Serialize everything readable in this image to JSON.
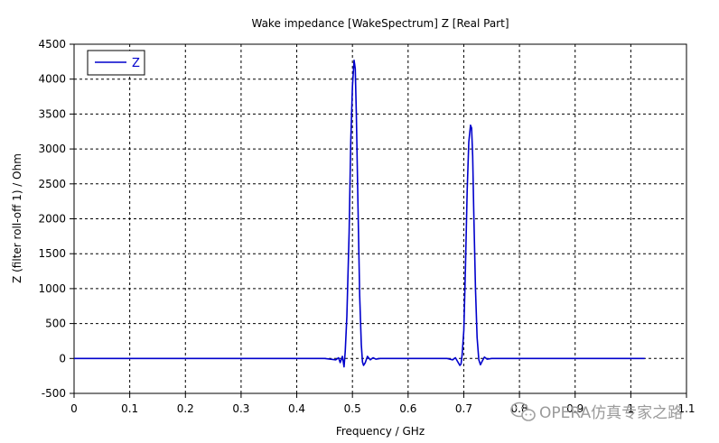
{
  "chart_data": {
    "type": "line",
    "title": "Wake impedance [WakeSpectrum] Z [Real Part]",
    "xlabel": "Frequency / GHz",
    "ylabel": "Z (filter roll-off 1) / Ohm",
    "xlim": [
      0,
      1.1
    ],
    "ylim": [
      -500,
      4500
    ],
    "xticks": [
      0,
      0.1,
      0.2,
      0.3,
      0.4,
      0.5,
      0.6,
      0.7,
      0.8,
      0.9,
      1.0,
      1.1
    ],
    "xtick_labels": [
      "0",
      "0.1",
      "0.2",
      "0.3",
      "0.4",
      "0.5",
      "0.6",
      "0.7",
      "0.8",
      "0.9",
      "1",
      "1.1"
    ],
    "yticks": [
      -500,
      0,
      500,
      1000,
      1500,
      2000,
      2500,
      3000,
      3500,
      4000,
      4500
    ],
    "ytick_labels": [
      "-500",
      "0",
      "500",
      "1000",
      "1500",
      "2000",
      "2500",
      "3000",
      "3500",
      "4000",
      "4500"
    ],
    "grid": true,
    "legend_position": "top-left",
    "series": [
      {
        "name": "Z",
        "color": "#0000cc",
        "x": [
          0,
          0.45,
          0.47,
          0.475,
          0.478,
          0.482,
          0.485,
          0.487,
          0.49,
          0.494,
          0.497,
          0.5,
          0.503,
          0.505,
          0.507,
          0.51,
          0.513,
          0.516,
          0.518,
          0.52,
          0.523,
          0.527,
          0.532,
          0.537,
          0.542,
          0.55,
          0.56,
          0.6,
          0.67,
          0.68,
          0.685,
          0.69,
          0.693,
          0.695,
          0.697,
          0.7,
          0.703,
          0.706,
          0.709,
          0.712,
          0.714,
          0.716,
          0.718,
          0.721,
          0.724,
          0.727,
          0.73,
          0.733,
          0.737,
          0.742,
          0.75,
          0.77,
          0.8,
          0.85,
          1.0,
          1.025
        ],
        "y": [
          0,
          0,
          -20,
          10,
          -60,
          30,
          -120,
          100,
          600,
          1800,
          3100,
          3900,
          4270,
          4150,
          3500,
          2200,
          900,
          200,
          -50,
          -100,
          -60,
          30,
          -20,
          10,
          -10,
          0,
          0,
          0,
          0,
          -20,
          10,
          -60,
          -100,
          -80,
          50,
          400,
          1300,
          2400,
          3100,
          3340,
          3300,
          2900,
          2100,
          1000,
          300,
          -20,
          -90,
          -40,
          20,
          -10,
          0,
          0,
          0,
          0,
          0,
          0
        ]
      }
    ]
  },
  "watermark": {
    "text": "OPERA仿真专家之路",
    "icon": "wechat-icon"
  }
}
